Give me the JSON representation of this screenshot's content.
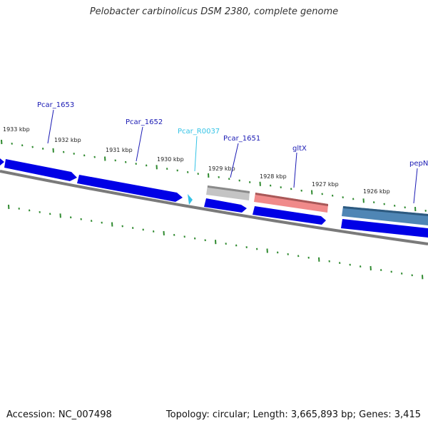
{
  "title": "Pelobacter carbinolicus DSM 2380, complete genome",
  "footer": {
    "accession": "Accession: NC_007498",
    "summary": "Topology: circular; Length: 3,665,893 bp; Genes: 3,415"
  },
  "colors": {
    "background": "#ffffff",
    "tick_green": "#2f8a2f",
    "backbone": "#7a7a7a",
    "gene_blue": "#0000e6",
    "rna_cyan": "#33c3e6",
    "label_dark_blue": "#1a1ab4",
    "label_cyan": "#33c3e6",
    "cds_gray": "#c4c4c4",
    "cds_red": "#f08a8a",
    "cds_steel": "#4f86b5"
  },
  "scale_labels": [
    "1933 kbp",
    "1932 kbp",
    "1931 kbp",
    "1930 kbp",
    "1929 kbp",
    "1928 kbp",
    "1927 kbp",
    "1926 kbp"
  ],
  "gene_labels": [
    {
      "name": "Pcar_1653",
      "kind": "gene"
    },
    {
      "name": "Pcar_1652",
      "kind": "gene"
    },
    {
      "name": "Pcar_R0037",
      "kind": "rna"
    },
    {
      "name": "Pcar_1651",
      "kind": "gene"
    },
    {
      "name": "gltX",
      "kind": "gene"
    },
    {
      "name": "pepN",
      "kind": "gene"
    }
  ]
}
